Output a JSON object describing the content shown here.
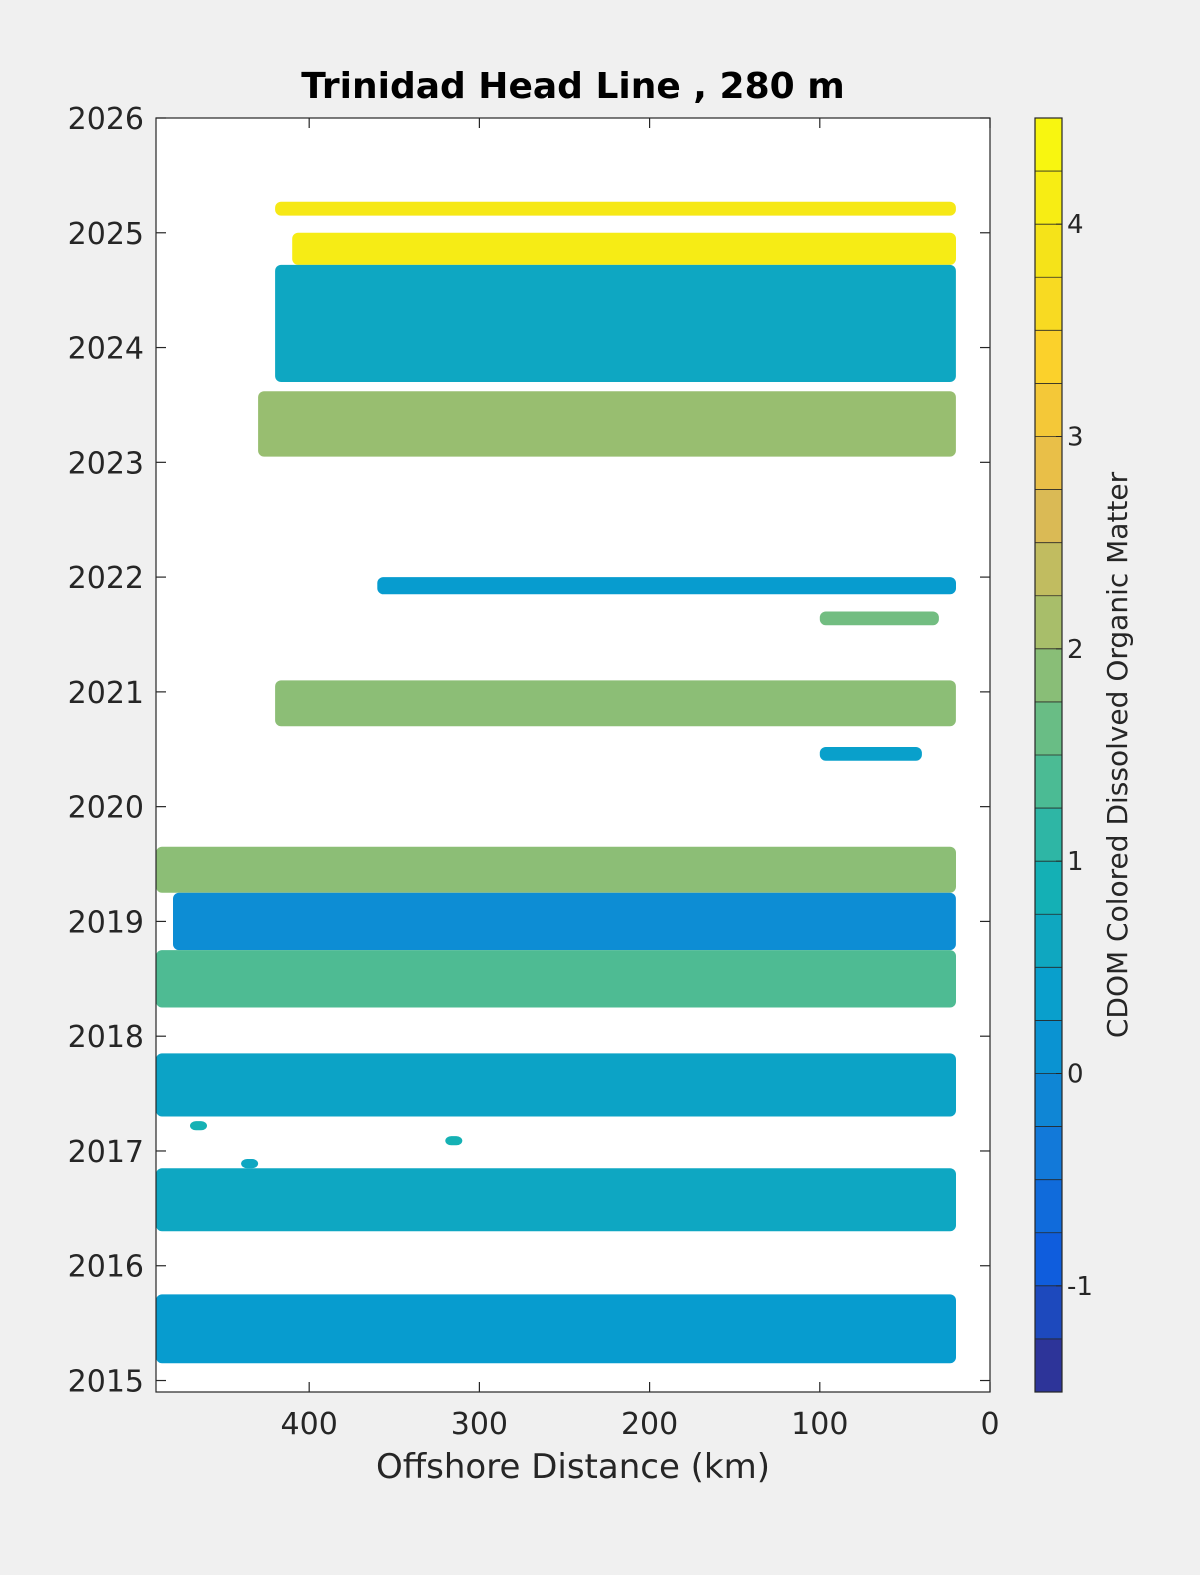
{
  "chart_data": {
    "type": "heatmap",
    "title": "Trinidad Head Line , 280 m",
    "xlabel": "Offshore Distance (km)",
    "ylabel": "",
    "xlim": [
      490,
      0
    ],
    "x_reversed": true,
    "ylim": [
      2014.9,
      2026
    ],
    "x_ticks": [
      "400",
      "300",
      "200",
      "100",
      "0"
    ],
    "x_tick_values": [
      400,
      300,
      200,
      100,
      0
    ],
    "y_ticks": [
      "2015",
      "2016",
      "2017",
      "2018",
      "2019",
      "2020",
      "2021",
      "2022",
      "2023",
      "2024",
      "2025",
      "2026"
    ],
    "y_tick_values": [
      2015,
      2016,
      2017,
      2018,
      2019,
      2020,
      2021,
      2022,
      2023,
      2024,
      2025,
      2026
    ],
    "colorbar": {
      "label": "CDOM Colored Dissolved Organic Matter",
      "range": [
        -1.5,
        4.5
      ],
      "ticks": [
        "-1",
        "0",
        "1",
        "2",
        "3",
        "4"
      ],
      "tick_values": [
        -1,
        0,
        1,
        2,
        3,
        4
      ],
      "levels": 24,
      "colormap": "parula"
    },
    "patches": [
      {
        "x_start": 420,
        "x_end": 20,
        "y_bottom": 2025.15,
        "y_top": 2025.27,
        "value": 4.0
      },
      {
        "x_start": 410,
        "x_end": 20,
        "y_bottom": 2024.72,
        "y_top": 2025.0,
        "value": 4.1
      },
      {
        "x_start": 420,
        "x_end": 20,
        "y_bottom": 2023.7,
        "y_top": 2024.72,
        "value": 0.6
      },
      {
        "x_start": 430,
        "x_end": 20,
        "y_bottom": 2023.05,
        "y_top": 2023.62,
        "value": 2.0
      },
      {
        "x_start": 360,
        "x_end": 20,
        "y_bottom": 2021.85,
        "y_top": 2022.0,
        "value": 0.3
      },
      {
        "x_start": 100,
        "x_end": 30,
        "y_bottom": 2021.58,
        "y_top": 2021.7,
        "value": 1.7
      },
      {
        "x_start": 420,
        "x_end": 20,
        "y_bottom": 2020.7,
        "y_top": 2021.1,
        "value": 1.9
      },
      {
        "x_start": 100,
        "x_end": 40,
        "y_bottom": 2020.4,
        "y_top": 2020.52,
        "value": 0.4
      },
      {
        "x_start": 490,
        "x_end": 20,
        "y_bottom": 2019.25,
        "y_top": 2019.65,
        "value": 1.9
      },
      {
        "x_start": 480,
        "x_end": 20,
        "y_bottom": 2018.75,
        "y_top": 2019.25,
        "value": 0.0
      },
      {
        "x_start": 490,
        "x_end": 20,
        "y_bottom": 2018.25,
        "y_top": 2018.75,
        "value": 1.4
      },
      {
        "x_start": 490,
        "x_end": 20,
        "y_bottom": 2017.3,
        "y_top": 2017.85,
        "value": 0.5
      },
      {
        "x_start": 470,
        "x_end": 460,
        "y_bottom": 2017.18,
        "y_top": 2017.26,
        "value": 0.9
      },
      {
        "x_start": 320,
        "x_end": 310,
        "y_bottom": 2017.05,
        "y_top": 2017.13,
        "value": 0.9
      },
      {
        "x_start": 440,
        "x_end": 430,
        "y_bottom": 2016.85,
        "y_top": 2016.93,
        "value": 0.6
      },
      {
        "x_start": 490,
        "x_end": 20,
        "y_bottom": 2016.3,
        "y_top": 2016.85,
        "value": 0.6
      },
      {
        "x_start": 490,
        "x_end": 20,
        "y_bottom": 2015.15,
        "y_top": 2015.75,
        "value": 0.3
      }
    ],
    "grid": false
  }
}
